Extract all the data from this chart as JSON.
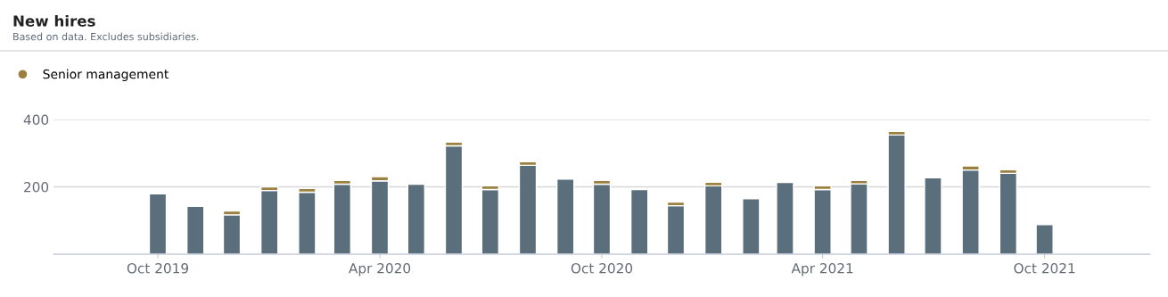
{
  "chart_data": {
    "type": "bar",
    "title": "New hires",
    "subtitle": "Based on data. Excludes subsidiaries.",
    "x": [
      "2019-10",
      "2019-11",
      "2019-12",
      "2020-01",
      "2020-02",
      "2020-03",
      "2020-04",
      "2020-05",
      "2020-06",
      "2020-07",
      "2020-08",
      "2020-09",
      "2020-10",
      "2020-11",
      "2020-12",
      "2021-01",
      "2021-02",
      "2021-03",
      "2021-04",
      "2021-05",
      "2021-06",
      "2021-07",
      "2021-08",
      "2021-09",
      "2021-10"
    ],
    "stacked": true,
    "series": [
      {
        "color": "#5b6e7c",
        "values": [
          179,
          142,
          117,
          189,
          184,
          208,
          218,
          208,
          322,
          192,
          264,
          223,
          208,
          192,
          144,
          203,
          165,
          213,
          192,
          209,
          354,
          227,
          250,
          240,
          88
        ]
      },
      {
        "name": "Senior management",
        "color": "#9c8040",
        "values": [
          null,
          null,
          11,
          11,
          11,
          11,
          12,
          null,
          11,
          11,
          11,
          null,
          11,
          null,
          11,
          11,
          null,
          null,
          11,
          10,
          11,
          null,
          12,
          11,
          null
        ]
      }
    ],
    "xlim": [
      "2019-07-07",
      "2021-12-27"
    ],
    "xticks": [
      {
        "value": "2019-10",
        "label": "Oct 2019"
      },
      {
        "value": "2020-04",
        "label": "Apr 2020"
      },
      {
        "value": "2020-10",
        "label": "Oct 2020"
      },
      {
        "value": "2021-04",
        "label": "Apr 2021"
      },
      {
        "value": "2021-10",
        "label": "Oct 2021"
      }
    ],
    "ylim": [
      0,
      400
    ],
    "yticks": [
      200,
      400
    ],
    "grid": "y",
    "legend": "top left"
  }
}
